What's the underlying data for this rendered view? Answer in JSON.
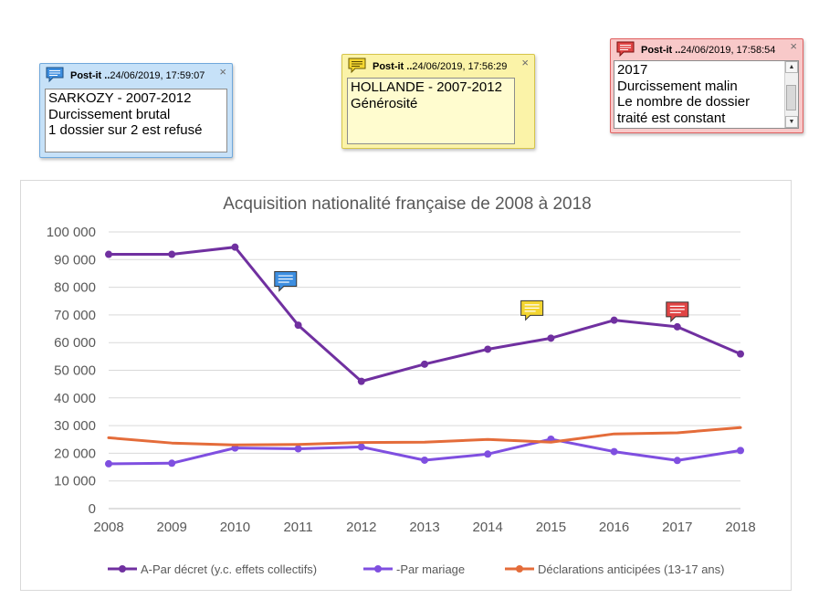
{
  "notes": [
    {
      "id": "note-blue",
      "title": "Post-it ..",
      "timestamp": "24/06/2019, 17:59:07",
      "lines": [
        "SARKOZY - 2007-2012",
        "Durcissement brutal",
        "1 dossier sur 2 est refusé"
      ],
      "color": "#c6e1f8",
      "icon_color": "#3d8ee0"
    },
    {
      "id": "note-yellow",
      "title": "Post-it ..",
      "timestamp": "24/06/2019, 17:56:29",
      "lines": [
        "HOLLANDE - 2007-2012",
        "Générosité"
      ],
      "color": "#fbf3a8",
      "icon_color": "#f3d530"
    },
    {
      "id": "note-red",
      "title": "Post-it ..",
      "timestamp": "24/06/2019, 17:58:54",
      "lines": [
        "2017",
        "Durcissement malin",
        "Le nombre de dossier",
        "traité est constant"
      ],
      "color": "#f8c9c9",
      "icon_color": "#e04545"
    }
  ],
  "close_glyph": "×",
  "chart_markers": [
    {
      "name": "blue-note-marker",
      "icon_color": "#3d8ee0",
      "year": 2010.8,
      "value": 82000
    },
    {
      "name": "yellow-note-marker",
      "icon_color": "#f3d530",
      "year": 2014.7,
      "value": 71500
    },
    {
      "name": "red-note-marker",
      "icon_color": "#e04545",
      "year": 2017.0,
      "value": 71000
    }
  ],
  "chart_data": {
    "type": "line",
    "title": "Acquisition nationalité française de 2008 à 2018",
    "xlabel": "",
    "ylabel": "",
    "x": [
      2008,
      2009,
      2010,
      2011,
      2012,
      2013,
      2014,
      2015,
      2016,
      2017,
      2018
    ],
    "x_tick_labels": [
      "2008",
      "2009",
      "2010",
      "2011",
      "2012",
      "2013",
      "2014",
      "2015",
      "2016",
      "2017",
      "2018"
    ],
    "ylim": [
      0,
      100000
    ],
    "y_ticks": [
      0,
      10000,
      20000,
      30000,
      40000,
      50000,
      60000,
      70000,
      80000,
      90000,
      100000
    ],
    "y_tick_labels": [
      "0",
      "10 000",
      "20 000",
      "30 000",
      "40 000",
      "50 000",
      "60 000",
      "70 000",
      "80 000",
      "90 000",
      "100 000"
    ],
    "grid": true,
    "legend_position": "bottom",
    "series": [
      {
        "name": "A-Par décret (y.c. effets collectifs)",
        "color": "#7030a0",
        "markers": true,
        "values": [
          91900,
          91900,
          94500,
          66300,
          46000,
          52200,
          57600,
          61600,
          68100,
          65700,
          55900
        ]
      },
      {
        "name": "-Par mariage",
        "color": "#7f4fe0",
        "markers": true,
        "values": [
          16200,
          16400,
          21900,
          21600,
          22300,
          17500,
          19700,
          25100,
          20600,
          17400,
          21000
        ]
      },
      {
        "name": "Déclarations anticipées (13-17 ans)",
        "color": "#e46c3a",
        "markers": false,
        "values": [
          25600,
          23700,
          23000,
          23200,
          23900,
          24000,
          25000,
          24000,
          27000,
          27400,
          29300
        ]
      }
    ]
  }
}
